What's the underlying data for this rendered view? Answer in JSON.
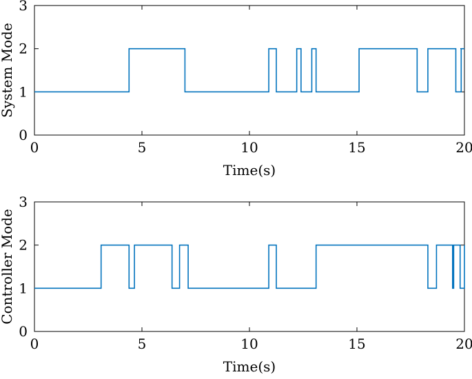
{
  "colors": {
    "series": "#0072BD",
    "axes": "#000000",
    "background": "#ffffff"
  },
  "chart_data": [
    {
      "type": "line",
      "step": true,
      "xlabel": "Time(s)",
      "ylabel": "System Mode",
      "xlim": [
        0,
        20
      ],
      "ylim": [
        0,
        3
      ],
      "xticks": [
        "0",
        "5",
        "10",
        "15",
        "20"
      ],
      "yticks": [
        "0",
        "1",
        "2",
        "3"
      ],
      "grid": false,
      "series": [
        {
          "x": [
            0,
            4.4,
            7.0,
            10.9,
            11.25,
            12.2,
            12.4,
            12.9,
            13.1,
            15.1,
            17.8,
            18.3,
            19.6,
            19.85,
            20
          ],
          "values": [
            1,
            2,
            1,
            2,
            1,
            2,
            1,
            2,
            1,
            2,
            1,
            2,
            1,
            2,
            2
          ]
        }
      ]
    },
    {
      "type": "line",
      "step": true,
      "xlabel": "Time(s)",
      "ylabel": "Controller Mode",
      "xlim": [
        0,
        20
      ],
      "ylim": [
        0,
        3
      ],
      "xticks": [
        "0",
        "5",
        "10",
        "15",
        "20"
      ],
      "yticks": [
        "0",
        "1",
        "2",
        "3"
      ],
      "grid": false,
      "series": [
        {
          "x": [
            0,
            3.1,
            4.4,
            4.65,
            6.4,
            6.75,
            7.15,
            10.9,
            11.25,
            13.1,
            18.3,
            18.7,
            19.45,
            19.5,
            19.8,
            20
          ],
          "values": [
            1,
            2,
            1,
            2,
            1,
            2,
            1,
            2,
            1,
            2,
            1,
            2,
            1,
            2,
            1,
            2
          ]
        }
      ]
    }
  ]
}
